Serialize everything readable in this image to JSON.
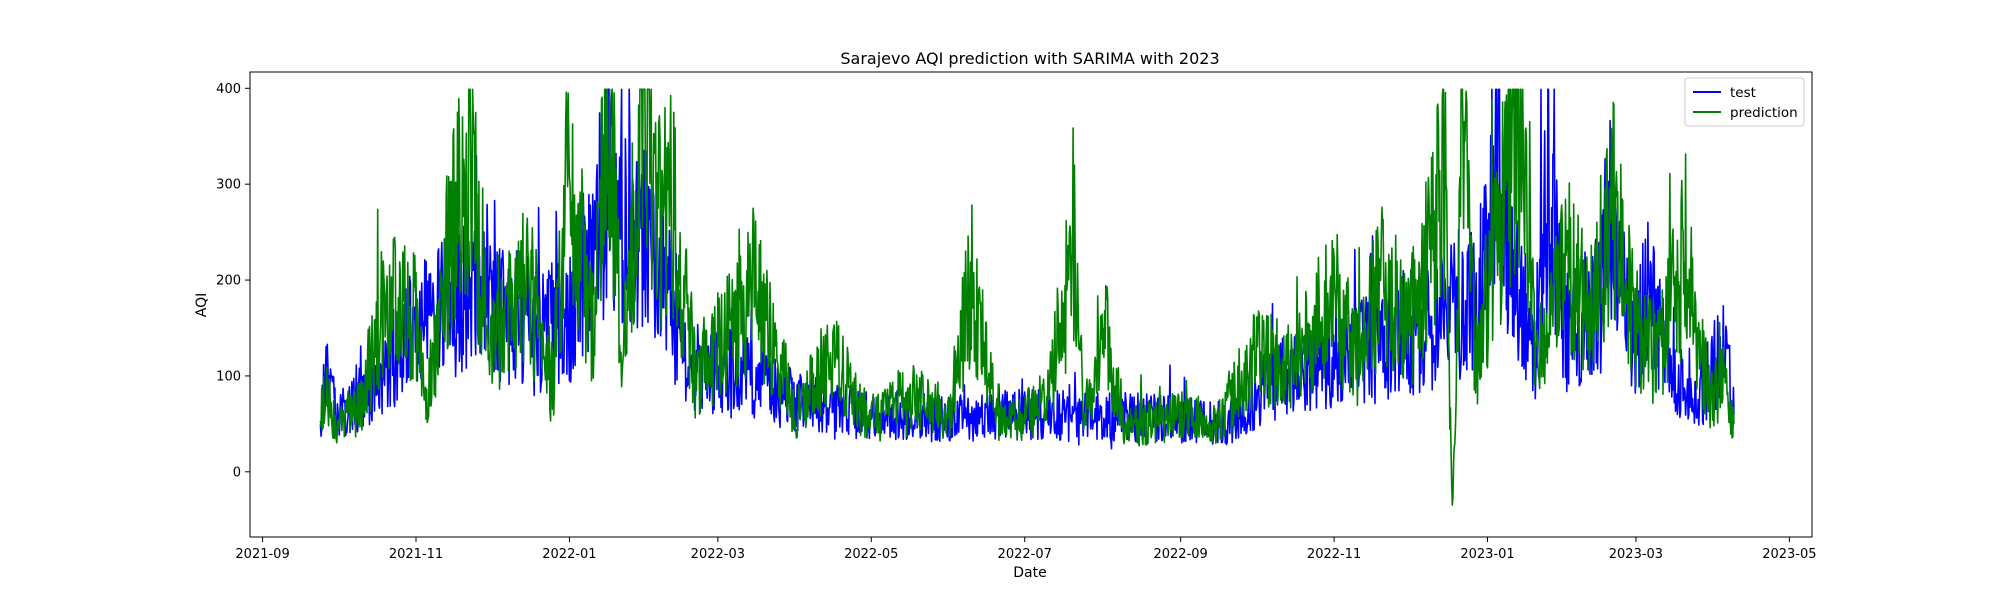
{
  "chart_data": {
    "type": "line",
    "title": "Sarajevo AQI prediction with SARIMA with 2023",
    "xlabel": "Date",
    "ylabel": "AQI",
    "x_range": [
      "2021-08-27",
      "2023-05-10"
    ],
    "ylim": [
      -68,
      417
    ],
    "x_ticks": [
      "2021-09",
      "2021-11",
      "2022-01",
      "2022-03",
      "2022-05",
      "2022-07",
      "2022-09",
      "2022-11",
      "2023-01",
      "2023-03",
      "2023-05"
    ],
    "y_ticks": [
      0,
      100,
      200,
      300,
      400
    ],
    "grid": false,
    "legend_position": "top-right",
    "series": [
      {
        "name": "test",
        "color": "#0000ff",
        "points": [
          [
            "2021-09-24",
            60
          ],
          [
            "2021-09-26",
            100
          ],
          [
            "2021-10-01",
            55
          ],
          [
            "2021-10-15",
            90
          ],
          [
            "2021-11-01",
            150
          ],
          [
            "2021-11-25",
            190
          ],
          [
            "2021-12-15",
            140
          ],
          [
            "2022-01-01",
            160
          ],
          [
            "2022-01-18",
            300
          ],
          [
            "2022-02-01",
            230
          ],
          [
            "2022-02-20",
            110
          ],
          [
            "2022-03-10",
            100
          ],
          [
            "2022-04-01",
            75
          ],
          [
            "2022-05-01",
            58
          ],
          [
            "2022-06-01",
            55
          ],
          [
            "2022-07-01",
            60
          ],
          [
            "2022-08-01",
            58
          ],
          [
            "2022-09-01",
            55
          ],
          [
            "2022-09-20",
            50
          ],
          [
            "2022-10-10",
            100
          ],
          [
            "2022-11-01",
            120
          ],
          [
            "2022-11-20",
            130
          ],
          [
            "2022-12-10",
            150
          ],
          [
            "2022-12-25",
            180
          ],
          [
            "2023-01-01",
            220
          ],
          [
            "2023-01-05",
            380
          ],
          [
            "2023-01-10",
            200
          ],
          [
            "2023-01-20",
            130
          ],
          [
            "2023-01-25",
            290
          ],
          [
            "2023-02-01",
            150
          ],
          [
            "2023-02-15",
            180
          ],
          [
            "2023-02-18",
            270
          ],
          [
            "2023-03-01",
            130
          ],
          [
            "2023-03-05",
            200
          ],
          [
            "2023-03-15",
            100
          ],
          [
            "2023-03-25",
            70
          ],
          [
            "2023-04-05",
            130
          ],
          [
            "2023-04-09",
            60
          ]
        ]
      },
      {
        "name": "prediction",
        "color": "#008000",
        "points": [
          [
            "2021-09-24",
            60
          ],
          [
            "2021-09-26",
            80
          ],
          [
            "2021-10-01",
            50
          ],
          [
            "2021-10-10",
            70
          ],
          [
            "2021-10-20",
            180
          ],
          [
            "2021-11-01",
            160
          ],
          [
            "2021-11-05",
            60
          ],
          [
            "2021-11-15",
            260
          ],
          [
            "2021-11-22",
            325
          ],
          [
            "2021-12-01",
            120
          ],
          [
            "2021-12-15",
            210
          ],
          [
            "2021-12-25",
            80
          ],
          [
            "2022-01-01",
            320
          ],
          [
            "2022-01-10",
            150
          ],
          [
            "2022-01-17",
            395
          ],
          [
            "2022-01-22",
            120
          ],
          [
            "2022-01-30",
            390
          ],
          [
            "2022-02-05",
            250
          ],
          [
            "2022-02-10",
            300
          ],
          [
            "2022-02-20",
            100
          ],
          [
            "2022-03-01",
            130
          ],
          [
            "2022-03-15",
            190
          ],
          [
            "2022-04-01",
            60
          ],
          [
            "2022-04-15",
            120
          ],
          [
            "2022-05-01",
            50
          ],
          [
            "2022-05-15",
            80
          ],
          [
            "2022-06-01",
            60
          ],
          [
            "2022-06-10",
            200
          ],
          [
            "2022-06-20",
            55
          ],
          [
            "2022-07-01",
            60
          ],
          [
            "2022-07-10",
            75
          ],
          [
            "2022-07-20",
            220
          ],
          [
            "2022-07-25",
            60
          ],
          [
            "2022-08-01",
            158
          ],
          [
            "2022-08-10",
            45
          ],
          [
            "2022-09-01",
            60
          ],
          [
            "2022-09-15",
            50
          ],
          [
            "2022-10-01",
            120
          ],
          [
            "2022-10-15",
            110
          ],
          [
            "2022-11-01",
            180
          ],
          [
            "2022-11-10",
            120
          ],
          [
            "2022-11-20",
            200
          ],
          [
            "2022-12-01",
            150
          ],
          [
            "2022-12-10",
            240
          ],
          [
            "2022-12-15",
            325
          ],
          [
            "2022-12-18",
            -45
          ],
          [
            "2022-12-22",
            330
          ],
          [
            "2022-12-28",
            120
          ],
          [
            "2023-01-05",
            250
          ],
          [
            "2023-01-15",
            385
          ],
          [
            "2023-01-20",
            100
          ],
          [
            "2023-02-01",
            220
          ],
          [
            "2023-02-10",
            160
          ],
          [
            "2023-02-20",
            280
          ],
          [
            "2023-03-01",
            150
          ],
          [
            "2023-03-10",
            120
          ],
          [
            "2023-03-20",
            220
          ],
          [
            "2023-03-30",
            80
          ],
          [
            "2023-04-05",
            90
          ],
          [
            "2023-04-09",
            50
          ]
        ]
      }
    ]
  }
}
